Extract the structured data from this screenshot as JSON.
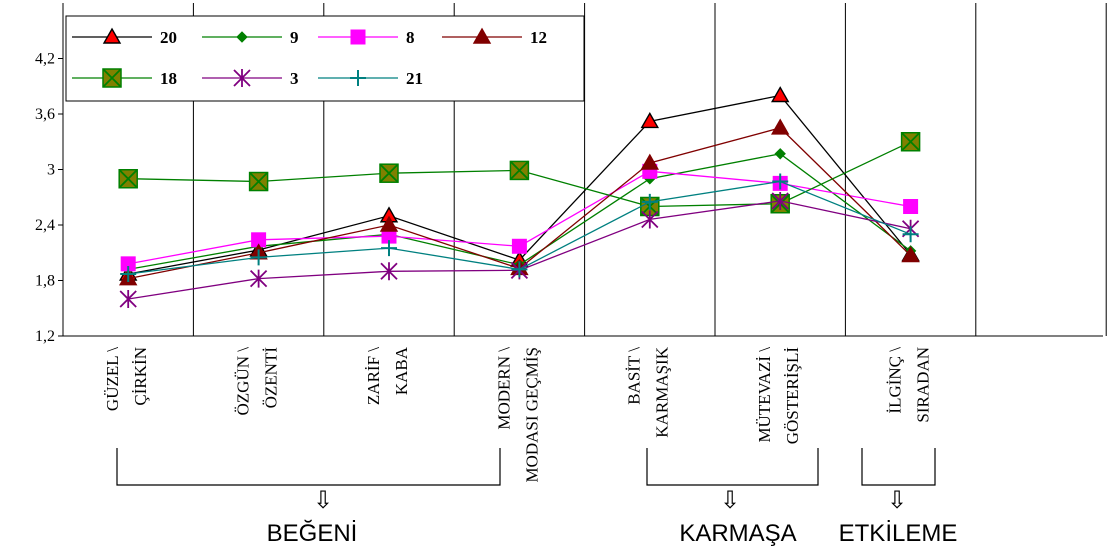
{
  "chart_data": {
    "type": "line",
    "ylim": [
      1.2,
      4.8
    ],
    "yticks": [
      "1,2",
      "1,8",
      "2,4",
      "3",
      "3,6",
      "4,2"
    ],
    "ytick_values": [
      1.2,
      1.8,
      2.4,
      3.0,
      3.6,
      4.2
    ],
    "grid": "vertical",
    "legend_position": "top-left",
    "categories": [
      [
        "GÜZEL \\",
        "ÇİRKİN"
      ],
      [
        "ÖZGÜN \\",
        "ÖZENTİ"
      ],
      [
        "ZARİF \\",
        "KABA"
      ],
      [
        "MODERN \\",
        "MODASI GEÇMİŞ"
      ],
      [
        "BASİT \\",
        "KARMAŞIK"
      ],
      [
        "MÜTEVAZİ \\",
        "GÖSTERİŞLİ"
      ],
      [
        "İLGİNÇ \\",
        "SIRADAN"
      ]
    ],
    "series": [
      {
        "name": "20",
        "color": "#000000",
        "marker": "triangle",
        "marker_fill": "#ff0000",
        "marker_stroke": "#000000",
        "values": [
          1.87,
          2.13,
          2.5,
          2.02,
          3.52,
          3.8,
          2.08
        ]
      },
      {
        "name": "9",
        "color": "#008000",
        "marker": "diamond",
        "marker_fill": "#008000",
        "marker_stroke": "#008000",
        "values": [
          1.92,
          2.17,
          2.3,
          1.97,
          2.9,
          3.17,
          2.12
        ]
      },
      {
        "name": "8",
        "color": "#ff00ff",
        "marker": "square",
        "marker_fill": "#ff00ff",
        "marker_stroke": "#ff00ff",
        "values": [
          1.98,
          2.24,
          2.28,
          2.17,
          2.98,
          2.85,
          2.6
        ]
      },
      {
        "name": "12",
        "color": "#800000",
        "marker": "triangle",
        "marker_fill": "#800000",
        "marker_stroke": "#800000",
        "values": [
          1.82,
          2.1,
          2.4,
          1.93,
          3.07,
          3.45,
          2.07
        ]
      },
      {
        "name": "18",
        "color": "#008000",
        "marker": "xsquare",
        "marker_fill": "#808000",
        "marker_stroke": "#008000",
        "values": [
          2.9,
          2.87,
          2.96,
          2.99,
          2.6,
          2.63,
          3.3
        ]
      },
      {
        "name": "3",
        "color": "#800080",
        "marker": "asterisk",
        "marker_fill": "#800080",
        "marker_stroke": "#800080",
        "values": [
          1.6,
          1.82,
          1.9,
          1.91,
          2.46,
          2.66,
          2.36
        ]
      },
      {
        "name": "21",
        "color": "#008080",
        "marker": "plus",
        "marker_fill": "#008080",
        "marker_stroke": "#008080",
        "values": [
          1.87,
          2.05,
          2.15,
          1.92,
          2.65,
          2.87,
          2.3
        ]
      }
    ],
    "groups": [
      {
        "label": "BEĞENİ"
      },
      {
        "label": "KARMAŞA"
      },
      {
        "label": "ETKİLEME"
      }
    ],
    "group_arrow": "⇩"
  }
}
